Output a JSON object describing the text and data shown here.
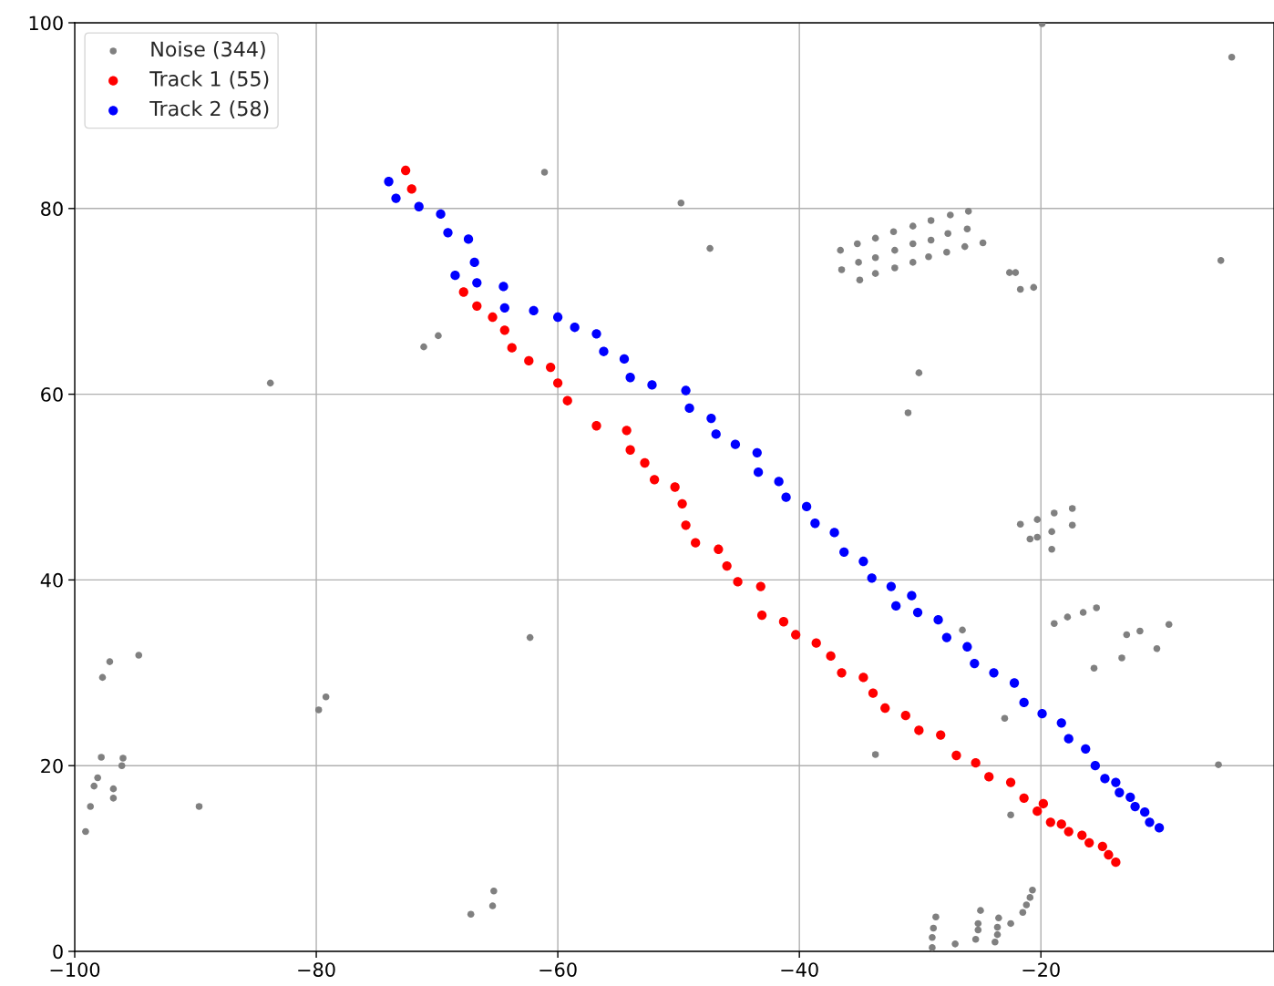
{
  "chart_data": {
    "type": "scatter",
    "xlim": [
      -100,
      -0.7
    ],
    "ylim": [
      0,
      100
    ],
    "xticks": [
      {
        "value": -100,
        "label": "−100"
      },
      {
        "value": -80,
        "label": "−80"
      },
      {
        "value": -60,
        "label": "−60"
      },
      {
        "value": -40,
        "label": "−40"
      },
      {
        "value": -20,
        "label": "−20"
      }
    ],
    "yticks": [
      0,
      20,
      40,
      60,
      80,
      100
    ],
    "grid": true,
    "legend": "top left",
    "marker": "circle",
    "series": [
      {
        "name": "Noise (344)",
        "color": "#808080",
        "x": [
          -99.1,
          -98.7,
          -98.4,
          -98.1,
          -97.8,
          -97.7,
          -97.1,
          -96.8,
          -96.8,
          -96.1,
          -96.0,
          -94.7,
          -89.7,
          -83.8,
          -79.8,
          -79.2,
          -71.1,
          -69.9,
          -67.2,
          -65.4,
          -65.3,
          -62.3,
          -61.1,
          -49.8,
          -47.4,
          -36.6,
          -36.5,
          -35.2,
          -35.1,
          -35.0,
          -33.7,
          -33.7,
          -33.7,
          -32.2,
          -32.1,
          -32.1,
          -30.6,
          -30.6,
          -30.6,
          -29.1,
          -29.1,
          -29.3,
          -27.5,
          -27.7,
          -27.8,
          -26.0,
          -26.1,
          -26.3,
          -24.8,
          -22.6,
          -22.1,
          -21.7,
          -20.6,
          -30.1,
          -31.0,
          -21.7,
          -20.3,
          -18.9,
          -17.4,
          -17.4,
          -19.1,
          -20.3,
          -20.9,
          -19.1,
          -18.9,
          -17.8,
          -16.5,
          -15.4,
          -12.9,
          -11.8,
          -9.4,
          -10.4,
          -13.3,
          -15.6,
          -26.5,
          -23.0,
          -33.7,
          -5.3,
          -22.5,
          -5.1,
          -4.2,
          -19.9,
          -28.7,
          -28.9,
          -29.0,
          -29.0,
          -27.1,
          -25.0,
          -25.2,
          -25.2,
          -25.4,
          -23.5,
          -23.6,
          -23.6,
          -23.8,
          -22.5,
          -21.5,
          -21.2,
          -20.9,
          -20.7
        ],
        "values": [
          12.9,
          15.6,
          17.8,
          18.7,
          20.9,
          29.5,
          31.2,
          17.5,
          16.5,
          20.0,
          20.8,
          31.9,
          15.6,
          61.2,
          26.0,
          27.4,
          65.1,
          66.3,
          4.0,
          4.9,
          6.5,
          33.8,
          83.9,
          80.6,
          75.7,
          75.5,
          73.4,
          76.2,
          74.2,
          72.3,
          76.8,
          74.7,
          73.0,
          77.5,
          75.5,
          73.6,
          78.1,
          76.2,
          74.2,
          78.7,
          76.6,
          74.8,
          79.3,
          77.3,
          75.3,
          79.7,
          77.8,
          75.9,
          76.3,
          73.1,
          73.1,
          71.3,
          71.5,
          62.3,
          58.0,
          46.0,
          46.5,
          47.2,
          47.7,
          45.9,
          45.2,
          44.6,
          44.4,
          43.3,
          35.3,
          36.0,
          36.5,
          37.0,
          34.1,
          34.5,
          35.2,
          32.6,
          31.6,
          30.5,
          34.6,
          25.1,
          21.2,
          20.1,
          14.7,
          74.4,
          96.3,
          99.9,
          3.7,
          2.5,
          1.5,
          0.4,
          0.8,
          4.4,
          3.0,
          2.3,
          1.3,
          3.6,
          2.6,
          1.8,
          1.0,
          3.0,
          4.2,
          5.0,
          5.8,
          6.6
        ]
      },
      {
        "name": "Track 1 (55)",
        "color": "#ff0000",
        "x": [
          -72.6,
          -72.1,
          -67.8,
          -66.7,
          -65.4,
          -64.4,
          -63.8,
          -62.4,
          -60.6,
          -60.0,
          -59.2,
          -56.8,
          -54.3,
          -54.0,
          -52.8,
          -52.0,
          -50.3,
          -49.7,
          -49.4,
          -48.6,
          -46.7,
          -46.0,
          -45.1,
          -43.2,
          -43.1,
          -41.3,
          -40.3,
          -38.6,
          -37.4,
          -36.5,
          -34.7,
          -33.9,
          -32.9,
          -31.2,
          -30.1,
          -28.3,
          -27.0,
          -25.4,
          -24.3,
          -22.5,
          -21.4,
          -20.3,
          -19.8,
          -19.2,
          -18.3,
          -17.7,
          -16.6,
          -16.0,
          -14.9,
          -14.4,
          -13.8
        ],
        "values": [
          84.1,
          82.1,
          71.0,
          69.5,
          68.3,
          66.9,
          65.0,
          63.6,
          62.9,
          61.2,
          59.3,
          56.6,
          56.1,
          54.0,
          52.6,
          50.8,
          50.0,
          48.2,
          45.9,
          44.0,
          43.3,
          41.5,
          39.8,
          39.3,
          36.2,
          35.5,
          34.1,
          33.2,
          31.8,
          30.0,
          29.5,
          27.8,
          26.2,
          25.4,
          23.8,
          23.3,
          21.1,
          20.3,
          18.8,
          18.2,
          16.5,
          15.1,
          15.9,
          13.9,
          13.7,
          12.9,
          12.5,
          11.7,
          11.3,
          10.4,
          9.6
        ]
      },
      {
        "name": "Track 2 (58)",
        "color": "#0000ff",
        "x": [
          -74.0,
          -73.4,
          -71.5,
          -69.7,
          -69.1,
          -67.4,
          -66.9,
          -68.5,
          -66.7,
          -64.5,
          -64.4,
          -62.0,
          -60.0,
          -58.6,
          -56.8,
          -56.2,
          -54.5,
          -54.0,
          -52.2,
          -49.4,
          -49.1,
          -47.3,
          -46.9,
          -45.3,
          -43.5,
          -43.4,
          -41.7,
          -41.1,
          -39.4,
          -38.7,
          -37.1,
          -36.3,
          -34.7,
          -34.0,
          -32.4,
          -32.0,
          -30.7,
          -30.2,
          -28.5,
          -27.8,
          -26.1,
          -25.5,
          -23.9,
          -22.2,
          -21.4,
          -19.9,
          -18.3,
          -17.7,
          -16.3,
          -15.5,
          -14.7,
          -13.8,
          -13.5,
          -12.6,
          -12.2,
          -11.4,
          -11.0,
          -10.2
        ],
        "values": [
          82.9,
          81.1,
          80.2,
          79.4,
          77.4,
          76.7,
          74.2,
          72.8,
          72.0,
          71.6,
          69.3,
          69.0,
          68.3,
          67.2,
          66.5,
          64.6,
          63.8,
          61.8,
          61.0,
          60.4,
          58.5,
          57.4,
          55.7,
          54.6,
          53.7,
          51.6,
          50.6,
          48.9,
          47.9,
          46.1,
          45.1,
          43.0,
          42.0,
          40.2,
          39.3,
          37.2,
          38.3,
          36.5,
          35.7,
          33.8,
          32.8,
          31.0,
          30.0,
          28.9,
          26.8,
          25.6,
          24.6,
          22.9,
          21.8,
          20.0,
          18.6,
          18.2,
          17.1,
          16.6,
          15.6,
          15.0,
          13.9,
          13.3
        ]
      }
    ]
  }
}
